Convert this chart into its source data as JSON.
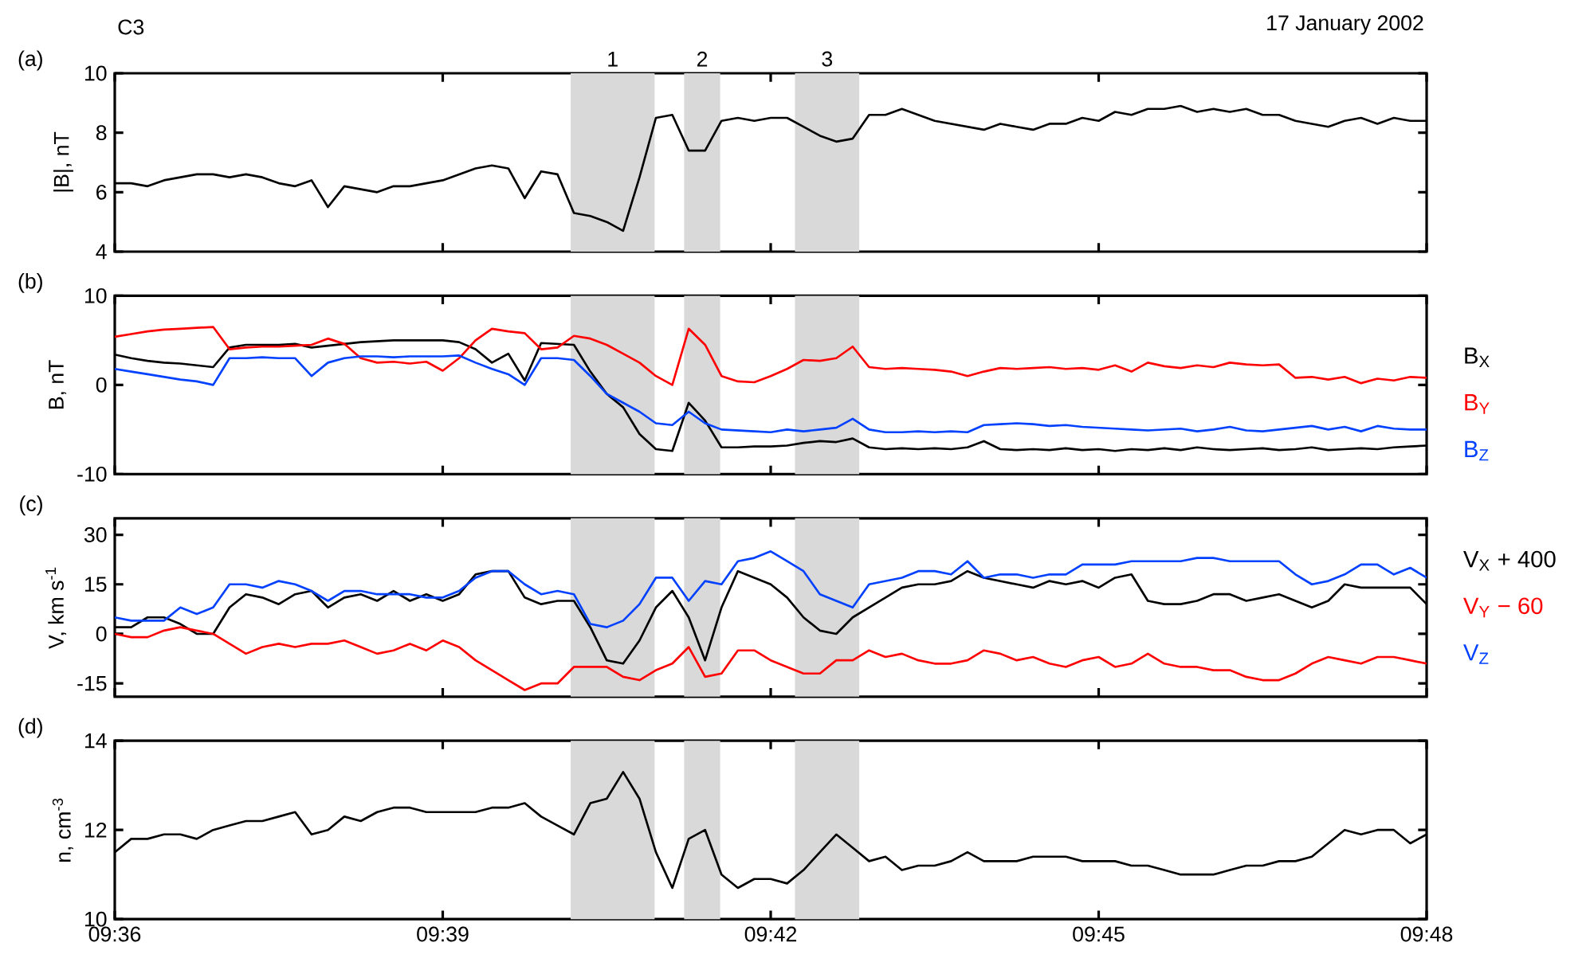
{
  "chart_data": [
    {
      "type": "line",
      "title": "(a)",
      "ylabel": "|B|, nT",
      "annotations": [
        "C3",
        "17 January 2002"
      ],
      "tick_labels": "y",
      "xlim": [
        9.6,
        9.8
      ],
      "ylim": [
        4,
        10
      ],
      "yticks": [
        4,
        6,
        8,
        10
      ],
      "xticks": [
        {
          "value": 9.6,
          "label": null
        },
        {
          "value": 9.65,
          "label": null
        },
        {
          "value": 9.7,
          "label": null
        },
        {
          "value": 9.75,
          "label": null
        },
        {
          "value": 9.8,
          "label": null
        }
      ],
      "bands": [
        {
          "axis": "x",
          "from": 9.6695,
          "to": 9.6823,
          "label": "1",
          "color": "#d9d9d9"
        },
        {
          "axis": "x",
          "from": 9.6868,
          "to": 9.6923,
          "label": "2",
          "color": "#d9d9d9"
        },
        {
          "axis": "x",
          "from": 9.7037,
          "to": 9.7135,
          "label": "3",
          "color": "#d9d9d9"
        }
      ],
      "x": [
        9.6,
        9.6025,
        9.605,
        9.6075,
        9.61,
        9.6125,
        9.615,
        9.6175,
        9.62,
        9.6225,
        9.625,
        9.6275,
        9.63,
        9.6325,
        9.635,
        9.6375,
        9.64,
        9.6425,
        9.645,
        9.6475,
        9.65,
        9.6525,
        9.655,
        9.6575,
        9.66,
        9.6625,
        9.665,
        9.6675,
        9.67,
        9.6725,
        9.675,
        9.6775,
        9.68,
        9.6825,
        9.685,
        9.6875,
        9.69,
        9.6925,
        9.695,
        9.6975,
        9.7,
        9.7025,
        9.705,
        9.7075,
        9.71,
        9.7125,
        9.715,
        9.7175,
        9.72,
        9.7225,
        9.725,
        9.7275,
        9.73,
        9.7325,
        9.735,
        9.7375,
        9.74,
        9.7425,
        9.745,
        9.7475,
        9.75,
        9.7525,
        9.755,
        9.7575,
        9.76,
        9.7625,
        9.765,
        9.7675,
        9.77,
        9.7725,
        9.775,
        9.7775,
        9.78,
        9.7825,
        9.785,
        9.7875,
        9.79,
        9.7925,
        9.795,
        9.7975,
        9.8
      ],
      "series": [
        {
          "color": "#000000",
          "values": [
            6.3,
            6.3,
            6.2,
            6.4,
            6.5,
            6.6,
            6.6,
            6.5,
            6.6,
            6.5,
            6.3,
            6.2,
            6.4,
            5.5,
            6.2,
            6.1,
            6.0,
            6.2,
            6.2,
            6.3,
            6.4,
            6.6,
            6.8,
            6.9,
            6.8,
            5.8,
            6.7,
            6.6,
            5.3,
            5.2,
            5.0,
            4.7,
            6.5,
            8.5,
            8.6,
            7.4,
            7.4,
            8.4,
            8.5,
            8.4,
            8.5,
            8.5,
            8.2,
            7.9,
            7.7,
            7.8,
            8.6,
            8.6,
            8.8,
            8.6,
            8.4,
            8.3,
            8.2,
            8.1,
            8.3,
            8.2,
            8.1,
            8.3,
            8.3,
            8.5,
            8.4,
            8.7,
            8.6,
            8.8,
            8.8,
            8.9,
            8.7,
            8.8,
            8.7,
            8.8,
            8.6,
            8.6,
            8.4,
            8.3,
            8.2,
            8.4,
            8.5,
            8.3,
            8.5,
            8.4,
            8.4
          ]
        }
      ]
    },
    {
      "type": "line",
      "title": "(b)",
      "ylabel": "B, nT",
      "tick_labels": "y",
      "legend": "right",
      "xlim": [
        9.6,
        9.8
      ],
      "ylim": [
        -10,
        10
      ],
      "yticks": [
        -10,
        0,
        10
      ],
      "xticks": [
        {
          "value": 9.6,
          "label": null
        },
        {
          "value": 9.65,
          "label": null
        },
        {
          "value": 9.7,
          "label": null
        },
        {
          "value": 9.75,
          "label": null
        },
        {
          "value": 9.8,
          "label": null
        }
      ],
      "bands": [
        {
          "axis": "x",
          "from": 9.6695,
          "to": 9.6823,
          "color": "#d9d9d9"
        },
        {
          "axis": "x",
          "from": 9.6868,
          "to": 9.6923,
          "color": "#d9d9d9"
        },
        {
          "axis": "x",
          "from": 9.7037,
          "to": 9.7135,
          "color": "#d9d9d9"
        }
      ],
      "x": [
        9.6,
        9.6025,
        9.605,
        9.6075,
        9.61,
        9.6125,
        9.615,
        9.6175,
        9.62,
        9.6225,
        9.625,
        9.6275,
        9.63,
        9.6325,
        9.635,
        9.6375,
        9.64,
        9.6425,
        9.645,
        9.6475,
        9.65,
        9.6525,
        9.655,
        9.6575,
        9.66,
        9.6625,
        9.665,
        9.6675,
        9.67,
        9.6725,
        9.675,
        9.6775,
        9.68,
        9.6825,
        9.685,
        9.6875,
        9.69,
        9.6925,
        9.695,
        9.6975,
        9.7,
        9.7025,
        9.705,
        9.7075,
        9.71,
        9.7125,
        9.715,
        9.7175,
        9.72,
        9.7225,
        9.725,
        9.7275,
        9.73,
        9.7325,
        9.735,
        9.7375,
        9.74,
        9.7425,
        9.745,
        9.7475,
        9.75,
        9.7525,
        9.755,
        9.7575,
        9.76,
        9.7625,
        9.765,
        9.7675,
        9.77,
        9.7725,
        9.775,
        9.7775,
        9.78,
        9.7825,
        9.785,
        9.7875,
        9.79,
        9.7925,
        9.795,
        9.7975,
        9.8
      ],
      "series": [
        {
          "name": "B$_{X}$",
          "color": "#000000",
          "values": [
            3.4,
            3.0,
            2.7,
            2.5,
            2.4,
            2.2,
            2.0,
            4.2,
            4.5,
            4.5,
            4.5,
            4.6,
            4.2,
            4.4,
            4.6,
            4.8,
            4.9,
            5.0,
            5.0,
            5.0,
            5.0,
            4.8,
            4.0,
            2.5,
            3.5,
            0.5,
            4.7,
            4.6,
            4.5,
            1.5,
            -1.0,
            -2.5,
            -5.5,
            -7.2,
            -7.4,
            -2.0,
            -4.0,
            -7.0,
            -7.0,
            -6.9,
            -6.9,
            -6.8,
            -6.5,
            -6.3,
            -6.4,
            -6.0,
            -7.0,
            -7.2,
            -7.1,
            -7.2,
            -7.1,
            -7.2,
            -7.0,
            -6.3,
            -7.2,
            -7.3,
            -7.2,
            -7.3,
            -7.1,
            -7.3,
            -7.2,
            -7.4,
            -7.2,
            -7.3,
            -7.1,
            -7.3,
            -7.0,
            -7.2,
            -7.3,
            -7.2,
            -7.1,
            -7.3,
            -7.2,
            -7.0,
            -7.3,
            -7.2,
            -7.1,
            -7.2,
            -7.0,
            -6.9,
            -6.8
          ]
        },
        {
          "name": "B$_{Y}$",
          "color": "#ff0000",
          "values": [
            5.4,
            5.7,
            6.0,
            6.2,
            6.3,
            6.4,
            6.5,
            4.0,
            4.2,
            4.3,
            4.3,
            4.4,
            4.5,
            5.2,
            4.6,
            3.0,
            2.5,
            2.6,
            2.4,
            2.6,
            1.6,
            3.0,
            5.0,
            6.3,
            6.0,
            5.8,
            4.0,
            4.2,
            5.5,
            5.2,
            4.5,
            3.5,
            2.5,
            1.0,
            0.0,
            6.3,
            4.5,
            1.0,
            0.4,
            0.3,
            1.0,
            1.8,
            2.8,
            2.7,
            3.0,
            4.3,
            2.0,
            1.8,
            1.9,
            1.8,
            1.7,
            1.5,
            1.0,
            1.5,
            1.9,
            1.8,
            1.9,
            2.0,
            1.8,
            1.9,
            1.7,
            2.2,
            1.5,
            2.5,
            2.1,
            1.9,
            2.2,
            2.0,
            2.5,
            2.3,
            2.2,
            2.3,
            0.8,
            0.9,
            0.6,
            0.9,
            0.2,
            0.7,
            0.5,
            0.9,
            0.8
          ]
        },
        {
          "name": "B$_{Z}$",
          "color": "#0040ff",
          "values": [
            1.8,
            1.5,
            1.2,
            0.9,
            0.6,
            0.4,
            0.0,
            3.0,
            3.0,
            3.1,
            3.0,
            3.0,
            1.0,
            2.5,
            3.0,
            3.2,
            3.2,
            3.1,
            3.2,
            3.2,
            3.2,
            3.3,
            2.5,
            1.8,
            1.2,
            0.0,
            3.0,
            3.0,
            2.8,
            1.0,
            -1.0,
            -2.0,
            -3.0,
            -4.3,
            -4.5,
            -3.0,
            -4.3,
            -5.0,
            -5.1,
            -5.2,
            -5.3,
            -5.0,
            -5.2,
            -5.0,
            -4.8,
            -3.8,
            -5.0,
            -5.3,
            -5.3,
            -5.2,
            -5.3,
            -5.2,
            -5.3,
            -4.5,
            -4.4,
            -4.3,
            -4.4,
            -4.6,
            -4.5,
            -4.7,
            -4.8,
            -4.9,
            -5.0,
            -5.1,
            -5.0,
            -4.9,
            -5.2,
            -5.0,
            -4.7,
            -5.1,
            -5.2,
            -5.0,
            -4.8,
            -4.6,
            -5.0,
            -4.7,
            -5.2,
            -4.6,
            -4.9,
            -5.0,
            -5.0
          ]
        }
      ]
    },
    {
      "type": "line",
      "title": "(c)",
      "ylabel": "V, km s$^{-1}$",
      "tick_labels": "y",
      "legend": "right",
      "xlim": [
        9.6,
        9.8
      ],
      "ylim": [
        -19,
        35
      ],
      "yticks": [
        -15,
        0,
        15,
        30
      ],
      "xticks": [
        {
          "value": 9.6,
          "label": null
        },
        {
          "value": 9.65,
          "label": null
        },
        {
          "value": 9.7,
          "label": null
        },
        {
          "value": 9.75,
          "label": null
        },
        {
          "value": 9.8,
          "label": null
        }
      ],
      "bands": [
        {
          "axis": "x",
          "from": 9.6695,
          "to": 9.6823,
          "color": "#d9d9d9"
        },
        {
          "axis": "x",
          "from": 9.6868,
          "to": 9.6923,
          "color": "#d9d9d9"
        },
        {
          "axis": "x",
          "from": 9.7037,
          "to": 9.7135,
          "color": "#d9d9d9"
        }
      ],
      "x": [
        9.6,
        9.6025,
        9.605,
        9.6075,
        9.61,
        9.6125,
        9.615,
        9.6175,
        9.62,
        9.6225,
        9.625,
        9.6275,
        9.63,
        9.6325,
        9.635,
        9.6375,
        9.64,
        9.6425,
        9.645,
        9.6475,
        9.65,
        9.6525,
        9.655,
        9.6575,
        9.66,
        9.6625,
        9.665,
        9.6675,
        9.67,
        9.6725,
        9.675,
        9.6775,
        9.68,
        9.6825,
        9.685,
        9.6875,
        9.69,
        9.6925,
        9.695,
        9.6975,
        9.7,
        9.7025,
        9.705,
        9.7075,
        9.71,
        9.7125,
        9.715,
        9.7175,
        9.72,
        9.7225,
        9.725,
        9.7275,
        9.73,
        9.7325,
        9.735,
        9.7375,
        9.74,
        9.7425,
        9.745,
        9.7475,
        9.75,
        9.7525,
        9.755,
        9.7575,
        9.76,
        9.7625,
        9.765,
        9.7675,
        9.77,
        9.7725,
        9.775,
        9.7775,
        9.78,
        9.7825,
        9.785,
        9.7875,
        9.79,
        9.7925,
        9.795,
        9.7975,
        9.8
      ],
      "series": [
        {
          "name": "V$_{X}$ + 400",
          "color": "#000000",
          "values": [
            2,
            2,
            5,
            5,
            3,
            0,
            0,
            8,
            12,
            11,
            9,
            12,
            13,
            8,
            11,
            12,
            10,
            13,
            10,
            12,
            10,
            12,
            18,
            19,
            19,
            11,
            9,
            10,
            10,
            2,
            -8,
            -9,
            -2,
            8,
            13,
            5,
            -8,
            8,
            19,
            17,
            15,
            11,
            5,
            1,
            0,
            5,
            8,
            11,
            14,
            15,
            15,
            16,
            19,
            17,
            16,
            15,
            14,
            16,
            15,
            16,
            14,
            17,
            18,
            10,
            9,
            9,
            10,
            12,
            12,
            10,
            11,
            12,
            10,
            8,
            10,
            15,
            14,
            14,
            14,
            14,
            9
          ]
        },
        {
          "name": "V$_{Y}$ − 60",
          "color": "#ff0000",
          "values": [
            0,
            -1,
            -1,
            1,
            2,
            1,
            0,
            -3,
            -6,
            -4,
            -3,
            -4,
            -3,
            -3,
            -2,
            -4,
            -6,
            -5,
            -3,
            -5,
            -2,
            -4,
            -8,
            -11,
            -14,
            -17,
            -15,
            -15,
            -10,
            -10,
            -10,
            -13,
            -14,
            -11,
            -9,
            -4,
            -13,
            -12,
            -5,
            -5,
            -8,
            -10,
            -12,
            -12,
            -8,
            -8,
            -5,
            -7,
            -6,
            -8,
            -9,
            -9,
            -8,
            -5,
            -6,
            -8,
            -7,
            -9,
            -10,
            -8,
            -7,
            -10,
            -9,
            -6,
            -9,
            -10,
            -10,
            -11,
            -11,
            -13,
            -14,
            -14,
            -12,
            -9,
            -7,
            -8,
            -9,
            -7,
            -7,
            -8,
            -9
          ]
        },
        {
          "name": "V$_{Z}$",
          "color": "#0040ff",
          "values": [
            5,
            4,
            4,
            4,
            8,
            6,
            8,
            15,
            15,
            14,
            16,
            15,
            13,
            10,
            13,
            13,
            12,
            12,
            12,
            11,
            11,
            13,
            17,
            19,
            19,
            15,
            12,
            13,
            12,
            3,
            2,
            4,
            9,
            17,
            17,
            10,
            16,
            15,
            22,
            23,
            25,
            22,
            19,
            12,
            10,
            8,
            15,
            16,
            17,
            19,
            19,
            18,
            22,
            17,
            18,
            18,
            17,
            18,
            18,
            21,
            21,
            21,
            22,
            22,
            22,
            22,
            23,
            23,
            22,
            22,
            22,
            22,
            18,
            15,
            16,
            18,
            21,
            21,
            18,
            20,
            17
          ]
        }
      ]
    },
    {
      "type": "line",
      "title": "(d)",
      "ylabel": "n, cm$^{-3}$",
      "xlim": [
        9.6,
        9.8
      ],
      "ylim": [
        10,
        14
      ],
      "yticks": [
        10,
        12,
        14
      ],
      "xticks": [
        {
          "value": 9.6,
          "label": "09:36"
        },
        {
          "value": 9.65,
          "label": "09:39"
        },
        {
          "value": 9.7,
          "label": "09:42"
        },
        {
          "value": 9.75,
          "label": "09:45"
        },
        {
          "value": 9.8,
          "label": "09:48"
        }
      ],
      "bands": [
        {
          "axis": "x",
          "from": 9.6695,
          "to": 9.6823,
          "color": "#d9d9d9"
        },
        {
          "axis": "x",
          "from": 9.6868,
          "to": 9.6923,
          "color": "#d9d9d9"
        },
        {
          "axis": "x",
          "from": 9.7037,
          "to": 9.7135,
          "color": "#d9d9d9"
        }
      ],
      "x": [
        9.6,
        9.6025,
        9.605,
        9.6075,
        9.61,
        9.6125,
        9.615,
        9.6175,
        9.62,
        9.6225,
        9.625,
        9.6275,
        9.63,
        9.6325,
        9.635,
        9.6375,
        9.64,
        9.6425,
        9.645,
        9.6475,
        9.65,
        9.6525,
        9.655,
        9.6575,
        9.66,
        9.6625,
        9.665,
        9.6675,
        9.67,
        9.6725,
        9.675,
        9.6775,
        9.68,
        9.6825,
        9.685,
        9.6875,
        9.69,
        9.6925,
        9.695,
        9.6975,
        9.7,
        9.7025,
        9.705,
        9.7075,
        9.71,
        9.7125,
        9.715,
        9.7175,
        9.72,
        9.7225,
        9.725,
        9.7275,
        9.73,
        9.7325,
        9.735,
        9.7375,
        9.74,
        9.7425,
        9.745,
        9.7475,
        9.75,
        9.7525,
        9.755,
        9.7575,
        9.76,
        9.7625,
        9.765,
        9.7675,
        9.77,
        9.7725,
        9.775,
        9.7775,
        9.78,
        9.7825,
        9.785,
        9.7875,
        9.79,
        9.7925,
        9.795,
        9.7975,
        9.8
      ],
      "series": [
        {
          "color": "#000000",
          "values": [
            11.5,
            11.8,
            11.8,
            11.9,
            11.9,
            11.8,
            12.0,
            12.1,
            12.2,
            12.2,
            12.3,
            12.4,
            11.9,
            12.0,
            12.3,
            12.2,
            12.4,
            12.5,
            12.5,
            12.4,
            12.4,
            12.4,
            12.4,
            12.5,
            12.5,
            12.6,
            12.3,
            12.1,
            11.9,
            12.6,
            12.7,
            13.3,
            12.7,
            11.5,
            10.7,
            11.8,
            12.0,
            11.0,
            10.7,
            10.9,
            10.9,
            10.8,
            11.1,
            11.5,
            11.9,
            11.6,
            11.3,
            11.4,
            11.1,
            11.2,
            11.2,
            11.3,
            11.5,
            11.3,
            11.3,
            11.3,
            11.4,
            11.4,
            11.4,
            11.3,
            11.3,
            11.3,
            11.2,
            11.2,
            11.1,
            11.0,
            11.0,
            11.0,
            11.1,
            11.2,
            11.2,
            11.3,
            11.3,
            11.4,
            11.7,
            12.0,
            11.9,
            12.0,
            12.0,
            11.7,
            11.9
          ]
        }
      ]
    }
  ]
}
